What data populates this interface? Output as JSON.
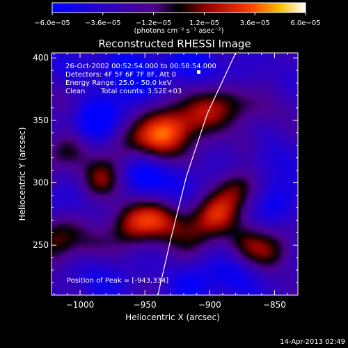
{
  "chart_data": {
    "type": "heatmap",
    "title": "Reconstructed RHESSI Image",
    "xlabel": "Heliocentric X (arcsec)",
    "ylabel": "Heliocentric Y (arcsec)",
    "xlim": [
      -1022,
      -832
    ],
    "ylim": [
      210,
      404
    ],
    "x_ticks": [
      -1000,
      -950,
      -900,
      -850
    ],
    "x_tick_labels": [
      "−1000",
      "−950",
      "−900",
      "−850"
    ],
    "y_ticks": [
      250,
      300,
      350,
      400
    ],
    "y_tick_labels": [
      "250",
      "300",
      "350",
      "400"
    ],
    "colorbar": {
      "min": -6e-05,
      "max": 6e-05,
      "ticks": [
        -6e-05,
        -3.6e-05,
        -1.2e-05,
        1.2e-05,
        3.6e-05,
        6e-05
      ],
      "tick_labels": [
        "−6.0e−05",
        "−3.6e−05",
        "−1.2e−05",
        "1.2e−05",
        "3.6e−05",
        "6.0e−05"
      ],
      "units_label": "(photons cm⁻² s⁻¹ asec⁻²)"
    },
    "annotations": {
      "time_range": "26-Oct-2002 00:52:54.000 to 00:58:54.000",
      "detectors": "Detectors: 4F 5F 6F 7F 8F, Att 0",
      "energy_range": "Energy Range: 25.0 - 50.0 keV",
      "algorithm": "Clean",
      "total_counts": "Total counts: 3.52E+03",
      "peak": "Position of Peak = [-943,334]"
    },
    "limb_curve": [
      [
        -940,
        210
      ],
      [
        -930,
        255
      ],
      [
        -918,
        305
      ],
      [
        -902,
        355
      ],
      [
        -880,
        404
      ]
    ],
    "peak_position": [
      -943,
      334
    ],
    "features": [
      {
        "x": -992,
        "y": 352,
        "v": -0.8,
        "s": 14
      },
      {
        "x": -962,
        "y": 386,
        "v": -0.7,
        "s": 14
      },
      {
        "x": -915,
        "y": 395,
        "v": -0.6,
        "s": 12
      },
      {
        "x": -870,
        "y": 380,
        "v": -0.3,
        "s": 14
      },
      {
        "x": -1006,
        "y": 365,
        "v": 0.4,
        "s": 13
      },
      {
        "x": -942,
        "y": 333,
        "v": 0.85,
        "s": 15
      },
      {
        "x": -925,
        "y": 345,
        "v": 0.65,
        "s": 13
      },
      {
        "x": -905,
        "y": 357,
        "v": 0.6,
        "s": 12
      },
      {
        "x": -885,
        "y": 368,
        "v": 0.5,
        "s": 13
      },
      {
        "x": -860,
        "y": 360,
        "v": 0.35,
        "s": 13
      },
      {
        "x": -968,
        "y": 335,
        "v": 0.3,
        "s": 11
      },
      {
        "x": -1008,
        "y": 325,
        "v": 0.55,
        "s": 12
      },
      {
        "x": -985,
        "y": 302,
        "v": 0.7,
        "s": 12
      },
      {
        "x": -952,
        "y": 308,
        "v": -0.55,
        "s": 14
      },
      {
        "x": -925,
        "y": 300,
        "v": -0.4,
        "s": 12
      },
      {
        "x": -858,
        "y": 320,
        "v": -0.3,
        "s": 15
      },
      {
        "x": -1005,
        "y": 285,
        "v": -0.35,
        "s": 12
      },
      {
        "x": -1015,
        "y": 255,
        "v": 0.6,
        "s": 14
      },
      {
        "x": -990,
        "y": 250,
        "v": 0.3,
        "s": 11
      },
      {
        "x": -960,
        "y": 268,
        "v": 0.75,
        "s": 13
      },
      {
        "x": -938,
        "y": 270,
        "v": 0.6,
        "s": 12
      },
      {
        "x": -915,
        "y": 262,
        "v": 0.5,
        "s": 14
      },
      {
        "x": -895,
        "y": 275,
        "v": 0.65,
        "s": 12
      },
      {
        "x": -880,
        "y": 295,
        "v": 0.6,
        "s": 12
      },
      {
        "x": -872,
        "y": 250,
        "v": 0.55,
        "s": 12
      },
      {
        "x": -850,
        "y": 245,
        "v": 0.45,
        "s": 12
      },
      {
        "x": -985,
        "y": 225,
        "v": -0.35,
        "s": 14
      },
      {
        "x": -915,
        "y": 220,
        "v": -0.4,
        "s": 13
      },
      {
        "x": -880,
        "y": 225,
        "v": -0.45,
        "s": 13
      },
      {
        "x": -845,
        "y": 283,
        "v": -0.4,
        "s": 12
      },
      {
        "x": -870,
        "y": 330,
        "v": 0.3,
        "s": 10
      },
      {
        "x": -1010,
        "y": 395,
        "v": -0.3,
        "s": 12
      }
    ]
  },
  "timestamp": "14-Apr-2013 02:49"
}
